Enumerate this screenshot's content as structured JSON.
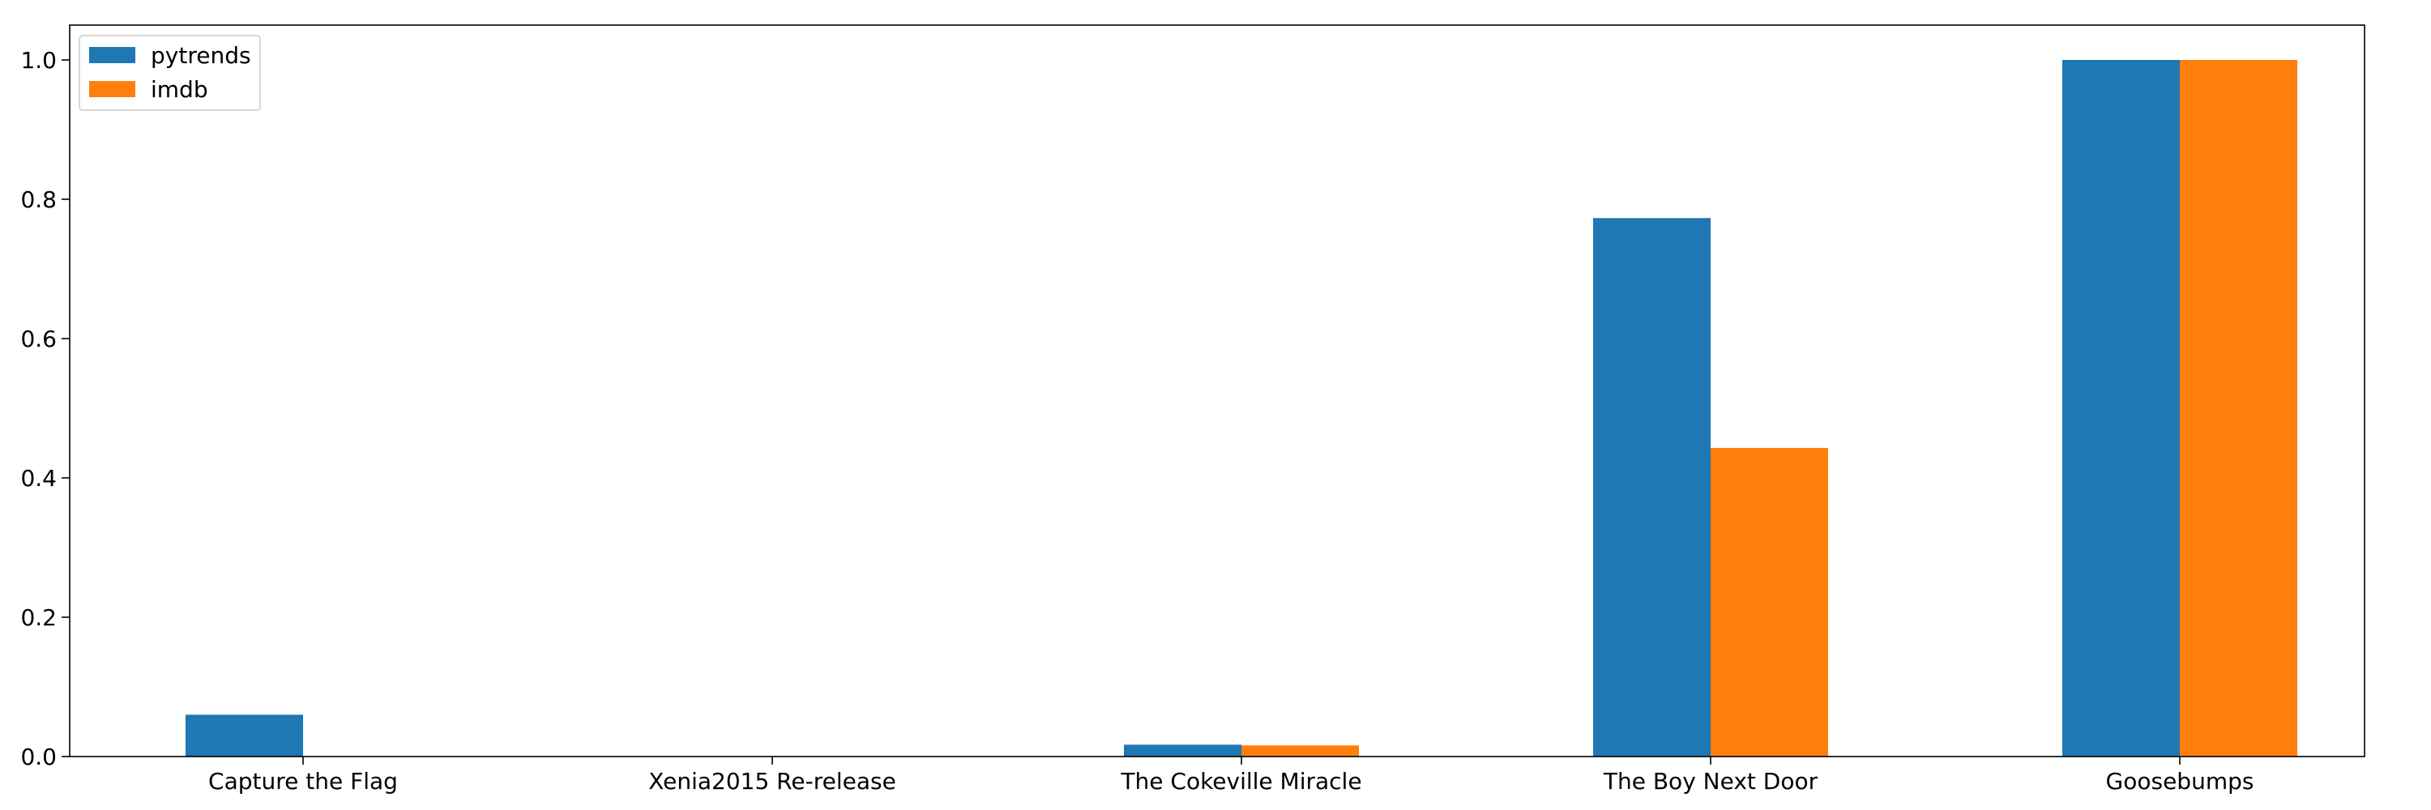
{
  "chart_data": {
    "type": "bar",
    "title": "",
    "xlabel": "",
    "ylabel": "",
    "categories": [
      "Capture the Flag",
      "Xenia2015 Re-release",
      "The Cokeville Miracle",
      "The Boy Next Door",
      "Goosebumps"
    ],
    "series": [
      {
        "name": "pytrends",
        "color": "#1f77b4",
        "values": [
          0.06,
          0.0,
          0.017,
          0.773,
          1.0
        ]
      },
      {
        "name": "imdb",
        "color": "#ff7f0e",
        "values": [
          0.0,
          0.0,
          0.016,
          0.443,
          1.0
        ]
      }
    ],
    "ylim": [
      0,
      1.05
    ],
    "yticks": [
      "0.0",
      "0.2",
      "0.4",
      "0.6",
      "0.8",
      "1.0"
    ],
    "grid": false,
    "legend": "top-left"
  }
}
